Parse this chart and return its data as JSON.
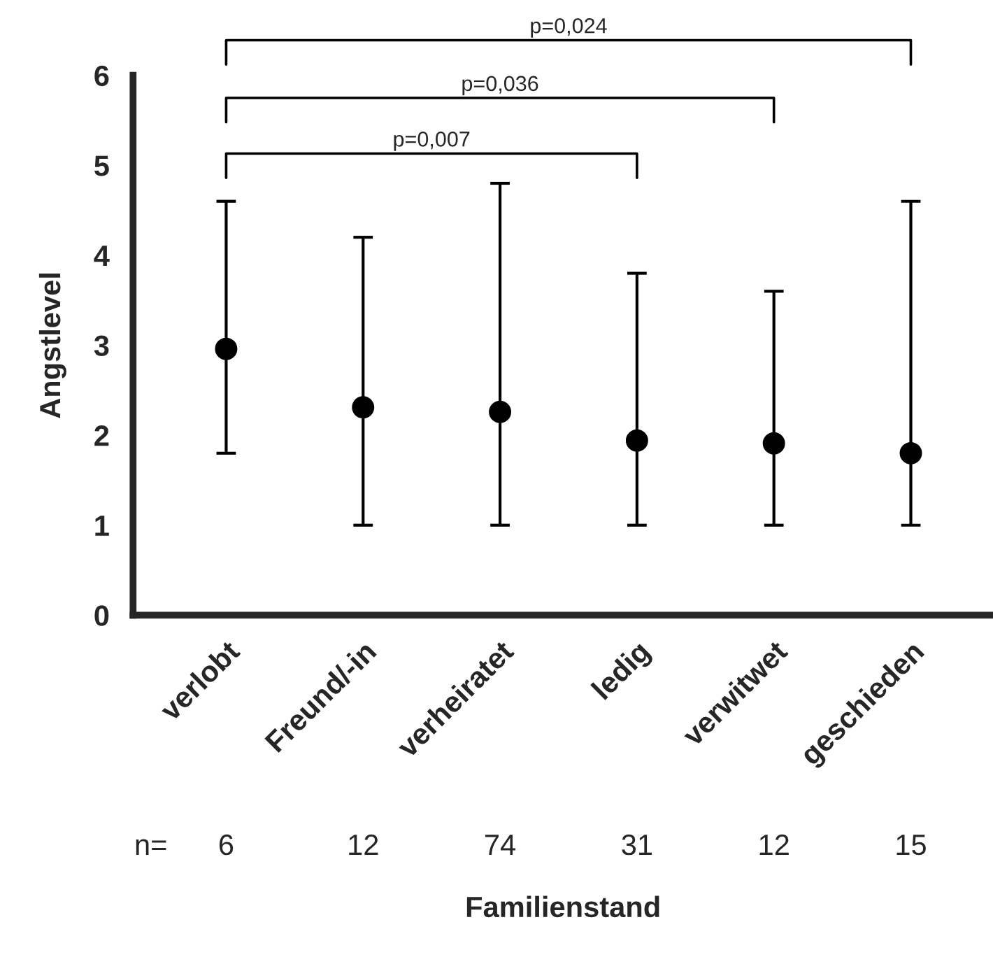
{
  "chart_data": {
    "type": "scatter",
    "xlabel": "Familienstand",
    "ylabel": "Angstlevel",
    "categories": [
      "verlobt",
      "Freund/-in",
      "verheiratet",
      "ledig",
      "verwitwet",
      "geschieden"
    ],
    "series": [
      {
        "color": "#000000",
        "values": [
          2.96,
          2.31,
          2.26,
          1.94,
          1.91,
          1.8
        ],
        "errors": [
          [
            1.8,
            4.6
          ],
          [
            1.0,
            4.2
          ],
          [
            1.0,
            4.8
          ],
          [
            1.0,
            3.8
          ],
          [
            1.0,
            3.6
          ],
          [
            1.0,
            4.6
          ]
        ]
      }
    ],
    "ylim": [
      0,
      6
    ],
    "yticks": [
      0,
      1,
      2,
      3,
      4,
      5,
      6
    ],
    "marker": "circle",
    "grid": false,
    "legend": false,
    "annotations": [
      "p=0,007",
      "p=0,036",
      "p=0,024",
      "n=",
      "6",
      "12",
      "74",
      "31",
      "12",
      "15"
    ]
  }
}
